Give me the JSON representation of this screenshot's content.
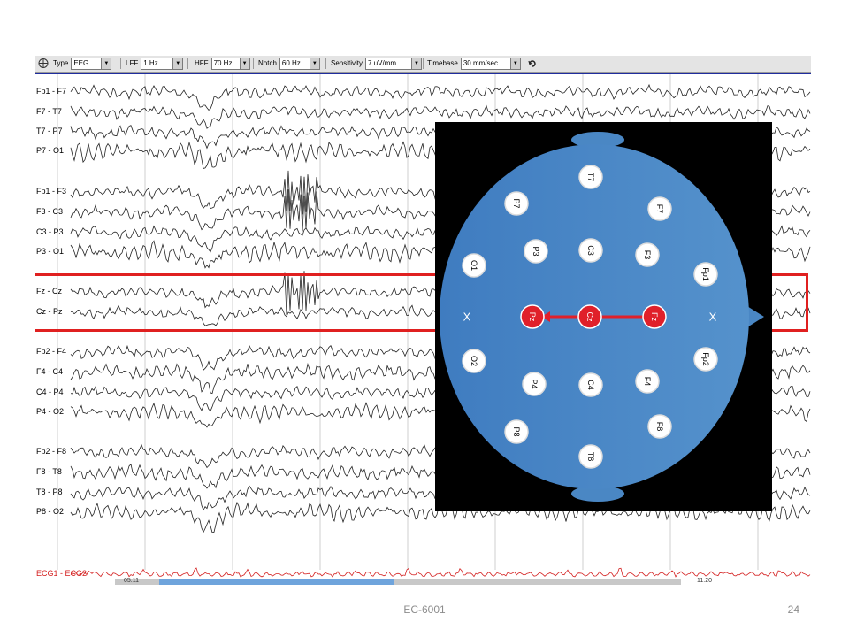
{
  "toolbar": {
    "type": {
      "label": "Type",
      "value": "EEG"
    },
    "lff": {
      "label": "LFF",
      "value": "1 Hz"
    },
    "hff": {
      "label": "HFF",
      "value": "70 Hz"
    },
    "notch": {
      "label": "Notch",
      "value": "60 Hz"
    },
    "sensitivity": {
      "label": "Sensitivity",
      "value": "7 uV/mm"
    },
    "timebase": {
      "label": "Timebase",
      "value": "30 mm/sec"
    }
  },
  "channels": [
    "Fp1 - F7",
    "F7 - T7",
    "T7 - P7",
    "P7 - O1",
    "Fp1 - F3",
    "F3 - C3",
    "C3 - P3",
    "P3 - O1",
    "Fz - Cz",
    "Cz - Pz",
    "Fp2 - F4",
    "F4 - C4",
    "C4 - P4",
    "P4 - O2",
    "Fp2 - F8",
    "F8 - T8",
    "T8 - P8",
    "P8 - O2",
    "ECG1 - ECG2"
  ],
  "timestamps": {
    "start": "05:11",
    "end": "11:20"
  },
  "electrodes": {
    "t7": "T7",
    "p7": "P7",
    "f7": "F7",
    "o1": "O1",
    "p3": "P3",
    "c3": "C3",
    "f3": "F3",
    "fp1": "Fp1",
    "pz": "Pz",
    "cz": "Cz",
    "fz": "Fz",
    "o2": "O2",
    "p4": "P4",
    "c4": "C4",
    "f4": "F4",
    "fp2": "Fp2",
    "p8": "P8",
    "f8": "F8",
    "t8": "T8",
    "x_left": "X",
    "x_right": "X"
  },
  "colors": {
    "head": "#4a87c4",
    "accent": "#e0202a",
    "trace": "#222222",
    "ecg": "#d42020"
  },
  "footer": {
    "center": "EC-6001",
    "page": "24"
  }
}
